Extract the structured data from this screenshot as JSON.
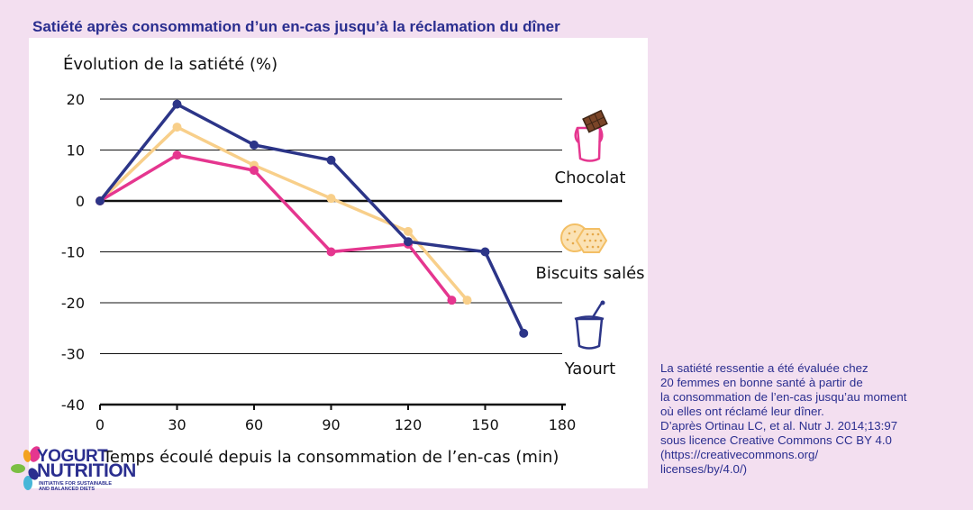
{
  "title": "Satiété après consommation d’un en-cas jusqu’à la réclamation du dîner",
  "chart_data": {
    "type": "line",
    "ylabel": "Évolution de la satiété (%)",
    "xlabel": "Temps écoulé depuis la consommation de l’en-cas (min)",
    "xlim": [
      0,
      180
    ],
    "ylim": [
      -40,
      20
    ],
    "x_ticks": [
      0,
      30,
      60,
      90,
      120,
      150,
      180
    ],
    "y_ticks": [
      20,
      10,
      0,
      -10,
      -20,
      -30,
      -40
    ],
    "x_tick_labels": [
      "0",
      "30",
      "60",
      "90",
      "120",
      "150",
      "180"
    ],
    "y_tick_labels": [
      "20",
      "10",
      "0",
      "-10",
      "-20",
      "-30",
      "-40"
    ],
    "grid": "horizontal",
    "series": [
      {
        "name": "Chocolat",
        "color": "#e5368f",
        "icon": "chocolate-bar-icon",
        "points": [
          [
            0,
            0
          ],
          [
            30,
            9
          ],
          [
            60,
            6
          ],
          [
            90,
            -10
          ],
          [
            120,
            -8.5
          ],
          [
            137,
            -19.5
          ]
        ]
      },
      {
        "name": "Biscuits salés",
        "color": "#f8cf8a",
        "icon": "crackers-icon",
        "points": [
          [
            0,
            0
          ],
          [
            30,
            14.5
          ],
          [
            60,
            7
          ],
          [
            90,
            0.5
          ],
          [
            120,
            -6
          ],
          [
            143,
            -19.5
          ]
        ]
      },
      {
        "name": "Yaourt",
        "color": "#2c3588",
        "icon": "yogurt-cup-icon",
        "points": [
          [
            0,
            0
          ],
          [
            30,
            19
          ],
          [
            60,
            11
          ],
          [
            90,
            8
          ],
          [
            120,
            -8
          ],
          [
            150,
            -10
          ],
          [
            165,
            -26
          ]
        ]
      }
    ]
  },
  "note_lines": [
    "La satiété ressentie a été évaluée chez",
    "20 femmes en bonne santé à partir de",
    "la consommation de l’en-cas jusqu’au moment",
    "où elles ont réclamé leur dîner.",
    "D’après Ortinau LC, et al. Nutr J. 2014;13:97",
    "sous licence Creative Commons CC BY 4.0",
    "(https://creativecommons.org/",
    "licenses/by/4.0/)"
  ],
  "logo": {
    "line1": "YOGURT",
    "line2": "NUTRITION",
    "tagline1": "INITIATIVE FOR SUSTAINABLE",
    "tagline2": "AND BALANCED DIETS"
  }
}
